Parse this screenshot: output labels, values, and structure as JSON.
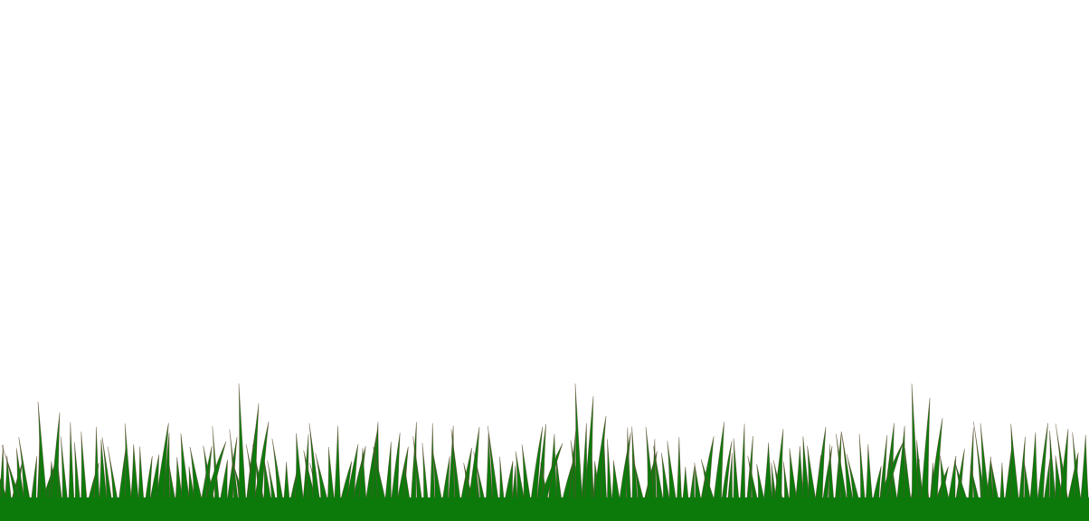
{
  "scene": {
    "subject": "grass-border",
    "colors": {
      "background": "#ffffff",
      "grass": "#0b7a0b",
      "blade_edge": "#6b4a3a"
    }
  }
}
